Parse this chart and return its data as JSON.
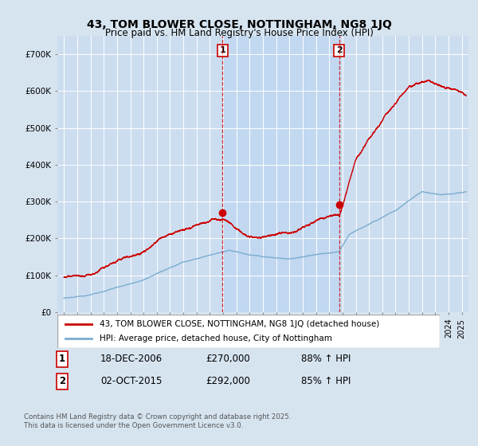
{
  "title": "43, TOM BLOWER CLOSE, NOTTINGHAM, NG8 1JQ",
  "subtitle": "Price paid vs. HM Land Registry's House Price Index (HPI)",
  "background_color": "#d6e4f0",
  "plot_bg_color": "#ccddf0",
  "shaded_region_color": "#c0d8f0",
  "grid_color": "#ffffff",
  "ylim": [
    0,
    750000
  ],
  "yticks": [
    0,
    100000,
    200000,
    300000,
    400000,
    500000,
    600000,
    700000
  ],
  "ytick_labels": [
    "£0",
    "£100K",
    "£200K",
    "£300K",
    "£400K",
    "£500K",
    "£600K",
    "£700K"
  ],
  "sale1_date_x": 2006.96,
  "sale1_price": 270000,
  "sale1_label": "1",
  "sale1_date_str": "18-DEC-2006",
  "sale1_price_str": "£270,000",
  "sale1_hpi_str": "88% ↑ HPI",
  "sale2_date_x": 2015.75,
  "sale2_price": 292000,
  "sale2_label": "2",
  "sale2_date_str": "02-OCT-2015",
  "sale2_price_str": "£292,000",
  "sale2_hpi_str": "85% ↑ HPI",
  "line1_color": "#cc0000",
  "line2_color": "#7aadcf",
  "vline_color": "#cc0000",
  "legend_line1": "43, TOM BLOWER CLOSE, NOTTINGHAM, NG8 1JQ (detached house)",
  "legend_line2": "HPI: Average price, detached house, City of Nottingham",
  "footnote": "Contains HM Land Registry data © Crown copyright and database right 2025.\nThis data is licensed under the Open Government Licence v3.0.",
  "xlim_start": 1994.5,
  "xlim_end": 2025.5
}
